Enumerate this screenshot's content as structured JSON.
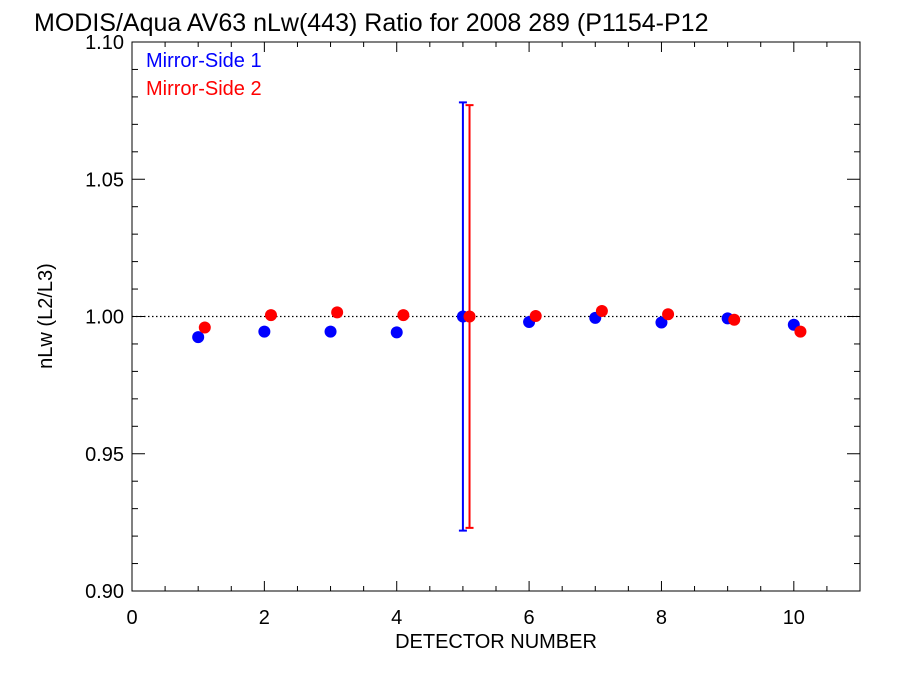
{
  "chart_data": {
    "type": "scatter",
    "title": "MODIS/Aqua AV63 nLw(443) Ratio for 2008 289 (P1154-P12",
    "xlabel": "DETECTOR NUMBER",
    "ylabel": "nLw (L2/L3)",
    "xlim": [
      0,
      11
    ],
    "ylim": [
      0.9,
      1.1
    ],
    "x_ticks": [
      0,
      2,
      4,
      6,
      8,
      10
    ],
    "x_tick_labels": [
      "0",
      "2",
      "4",
      "6",
      "8",
      "10"
    ],
    "y_ticks": [
      0.9,
      0.95,
      1.0,
      1.05,
      1.1
    ],
    "y_tick_labels": [
      "0.90",
      "0.95",
      "1.00",
      "1.05",
      "1.10"
    ],
    "reference_line": {
      "y": 1.0,
      "style": "dotted"
    },
    "legend_position": "top-left",
    "grid": false,
    "series": [
      {
        "name": "Mirror-Side 1",
        "color": "#0000ff",
        "x": [
          1,
          2,
          3,
          4,
          5,
          6,
          7,
          8,
          9,
          10
        ],
        "y": [
          0.9925,
          0.9945,
          0.9945,
          0.9942,
          1.0,
          0.998,
          0.9995,
          0.9978,
          0.9993,
          0.997
        ],
        "error_bars": [
          {
            "x": 5,
            "low": 0.922,
            "high": 1.078
          }
        ]
      },
      {
        "name": "Mirror-Side 2",
        "color": "#ff0000",
        "x": [
          1.1,
          2.1,
          3.1,
          4.1,
          5.1,
          6.1,
          7.1,
          8.1,
          9.1,
          10.1
        ],
        "y": [
          0.996,
          1.0005,
          1.0015,
          1.0005,
          1.0,
          1.0002,
          1.002,
          1.0008,
          0.9988,
          0.9945
        ],
        "error_bars": [
          {
            "x": 5.1,
            "low": 0.923,
            "high": 1.077
          }
        ]
      }
    ]
  }
}
